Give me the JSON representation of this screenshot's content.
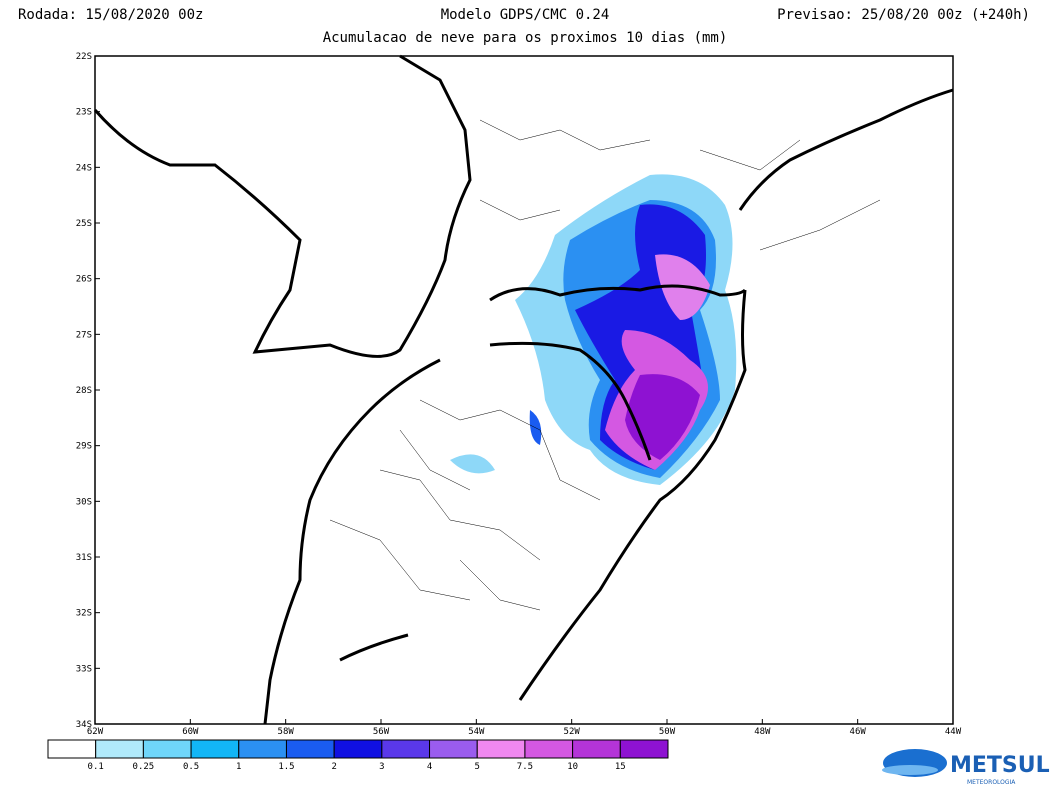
{
  "header": {
    "left": "Rodada: 15/08/2020 00z",
    "center": "Modelo GDPS/CMC 0.24",
    "right": "Previsao: 25/08/20 00z (+240h)",
    "subtitle": "Acumulacao de neve para os proximos 10 dias (mm)"
  },
  "map": {
    "lat_labels": [
      "22S",
      "23S",
      "24S",
      "25S",
      "26S",
      "27S",
      "28S",
      "29S",
      "30S",
      "31S",
      "32S",
      "33S",
      "34S"
    ],
    "lon_labels": [
      "62W",
      "60W",
      "58W",
      "56W",
      "54W",
      "52W",
      "50W",
      "48W",
      "46W",
      "44W"
    ]
  },
  "colorbar": {
    "labels": [
      "0.1",
      "0.25",
      "0.5",
      "1",
      "1.5",
      "2",
      "3",
      "4",
      "5",
      "7.5",
      "10",
      "15"
    ],
    "colors": [
      "#ffffff",
      "#b0eafb",
      "#6fd6fa",
      "#12b6f6",
      "#2b90f2",
      "#1a5cf0",
      "#1010e2",
      "#5a38ea",
      "#9a5cee",
      "#f088f0",
      "#d458e2",
      "#b434d8",
      "#8e12d2"
    ]
  },
  "logo": {
    "name": "METSUL",
    "tagline": "METEOROLOGIA"
  }
}
